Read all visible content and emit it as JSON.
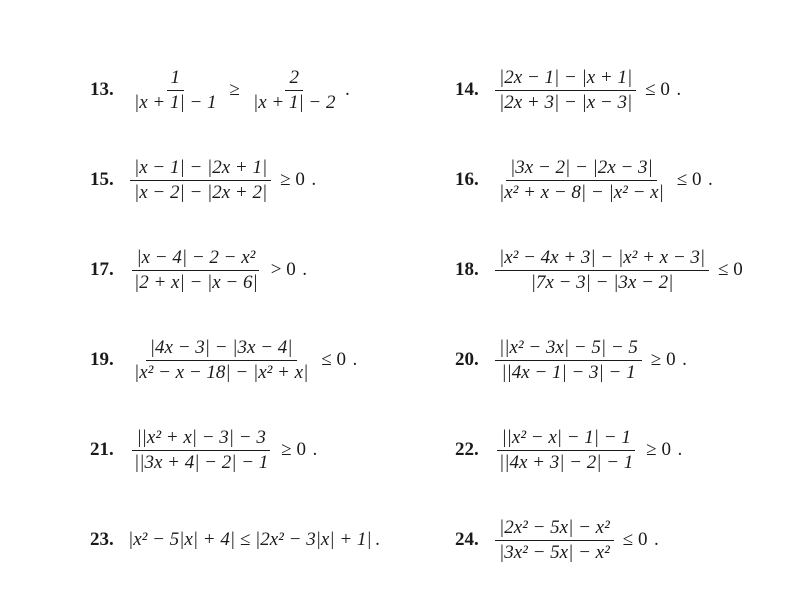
{
  "problems": [
    {
      "num": "13.",
      "numer1": "1",
      "denom1": "|x + 1| − 1",
      "rel": "≥",
      "numer2": "2",
      "denom2": "|x + 1| − 2",
      "tail": "."
    },
    {
      "num": "14.",
      "numer1": "|2x − 1| − |x + 1|",
      "denom1": "|2x + 3| − |x − 3|",
      "rel": "≤ 0",
      "tail": "."
    },
    {
      "num": "15.",
      "numer1": "|x − 1| − |2x + 1|",
      "denom1": "|x − 2| − |2x + 2|",
      "rel": "≥ 0",
      "tail": "."
    },
    {
      "num": "16.",
      "numer1": "|3x − 2| − |2x − 3|",
      "denom1": "|x² + x − 8| − |x² − x|",
      "rel": "≤ 0",
      "tail": "."
    },
    {
      "num": "17.",
      "numer1": "|x − 4| − 2 − x²",
      "denom1": "|2 + x| − |x − 6|",
      "rel": "> 0",
      "tail": "."
    },
    {
      "num": "18.",
      "numer1": "|x² − 4x + 3| − |x² + x − 3|",
      "denom1": "|7x − 3| − |3x − 2|",
      "rel": "≤ 0",
      "tail": ""
    },
    {
      "num": "19.",
      "numer1": "|4x − 3| − |3x − 4|",
      "denom1": "|x² − x − 18| − |x² + x|",
      "rel": "≤ 0",
      "tail": "."
    },
    {
      "num": "20.",
      "numer1": "||x² − 3x| − 5| − 5",
      "denom1": "||4x − 1| − 3| − 1",
      "rel": "≥ 0",
      "tail": "."
    },
    {
      "num": "21.",
      "numer1": "||x² + x| − 3| − 3",
      "denom1": "||3x + 4| − 2| − 1",
      "rel": "≥ 0",
      "tail": "."
    },
    {
      "num": "22.",
      "numer1": "||x² − x| − 1| − 1",
      "denom1": "||4x + 3| − 2| − 1",
      "rel": "≥ 0",
      "tail": "."
    },
    {
      "num": "23.",
      "flat": "|x² − 5|x| + 4| ≤ |2x² − 3|x| + 1|",
      "tail": "."
    },
    {
      "num": "24.",
      "numer1": "|2x² − 5x| − x²",
      "denom1": "|3x² − 5x| − x²",
      "rel": "≤ 0",
      "tail": "."
    }
  ],
  "style": {
    "font_family": "Times New Roman",
    "font_size_pt": 19,
    "text_color": "#1a1a1a",
    "background": "#ffffff",
    "columns": 2
  }
}
